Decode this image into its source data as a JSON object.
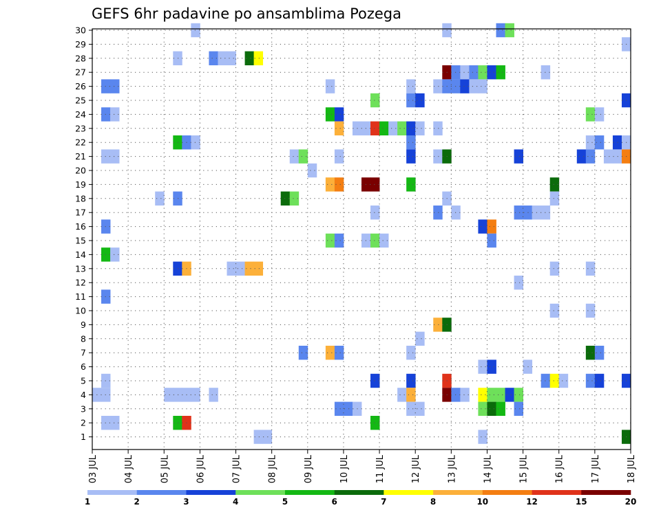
{
  "chart_data": {
    "type": "heatmap",
    "title": "GEFS 6hr padavine po ansamblima Pozega",
    "xlabel": "",
    "ylabel": "",
    "x_range": [
      0,
      15
    ],
    "x_step": 0.25,
    "x_tick_labels": [
      "03 JUL",
      "04 JUL",
      "05 JUL",
      "06 JUL",
      "07 JUL",
      "08 JUL",
      "09 JUL",
      "10 JUL",
      "11 JUL",
      "12 JUL",
      "13 JUL",
      "14 JUL",
      "15 JUL",
      "16 JUL",
      "17 JUL",
      "18 JUL"
    ],
    "y_tick_labels": [
      "1",
      "2",
      "3",
      "4",
      "5",
      "6",
      "7",
      "8",
      "9",
      "10",
      "11",
      "12",
      "13",
      "14",
      "15",
      "16",
      "17",
      "18",
      "19",
      "20",
      "21",
      "22",
      "23",
      "24",
      "25",
      "26",
      "27",
      "28",
      "29",
      "30"
    ],
    "grid": true,
    "legend": {
      "position": "bottom",
      "labels": [
        "1",
        "2",
        "3",
        "4",
        "5",
        "6",
        "7",
        "8",
        "10",
        "12",
        "15",
        "20"
      ],
      "colors": [
        "#a8bdf5",
        "#5a86ee",
        "#1642d8",
        "#6ee05a",
        "#14b814",
        "#0b6b0b",
        "#ffff00",
        "#fcb03a",
        "#f47e12",
        "#e0321a",
        "#7a0000"
      ]
    },
    "cells": [
      [
        30,
        2.75,
        0
      ],
      [
        30,
        9.75,
        0
      ],
      [
        30,
        11.25,
        1
      ],
      [
        30,
        11.5,
        3
      ],
      [
        29,
        14.75,
        0
      ],
      [
        28,
        2.25,
        0
      ],
      [
        28,
        3.25,
        1
      ],
      [
        28,
        3.5,
        0
      ],
      [
        28,
        3.75,
        0
      ],
      [
        28,
        4.25,
        5
      ],
      [
        28,
        4.5,
        6
      ],
      [
        27,
        9.75,
        10
      ],
      [
        27,
        10.0,
        1
      ],
      [
        27,
        10.25,
        0
      ],
      [
        27,
        10.5,
        1
      ],
      [
        27,
        10.75,
        3
      ],
      [
        27,
        11.0,
        2
      ],
      [
        27,
        11.25,
        4
      ],
      [
        27,
        12.5,
        0
      ],
      [
        26,
        0.25,
        1
      ],
      [
        26,
        0.5,
        1
      ],
      [
        26,
        6.5,
        0
      ],
      [
        26,
        8.75,
        0
      ],
      [
        26,
        9.5,
        0
      ],
      [
        26,
        9.75,
        1
      ],
      [
        26,
        10.0,
        1
      ],
      [
        26,
        10.25,
        2
      ],
      [
        26,
        10.5,
        0
      ],
      [
        26,
        10.75,
        0
      ],
      [
        25,
        7.75,
        3
      ],
      [
        25,
        8.75,
        1
      ],
      [
        25,
        9.0,
        2
      ],
      [
        25,
        14.75,
        2
      ],
      [
        24,
        0.25,
        1
      ],
      [
        24,
        0.5,
        0
      ],
      [
        24,
        6.5,
        4
      ],
      [
        24,
        6.75,
        2
      ],
      [
        24,
        13.75,
        3
      ],
      [
        24,
        14.0,
        0
      ],
      [
        23,
        6.75,
        7
      ],
      [
        23,
        7.25,
        0
      ],
      [
        23,
        7.5,
        0
      ],
      [
        23,
        7.75,
        9
      ],
      [
        23,
        8.0,
        4
      ],
      [
        23,
        8.25,
        0
      ],
      [
        23,
        8.5,
        3
      ],
      [
        23,
        8.75,
        2
      ],
      [
        23,
        9.0,
        0
      ],
      [
        23,
        9.5,
        0
      ],
      [
        22,
        2.25,
        4
      ],
      [
        22,
        2.5,
        1
      ],
      [
        22,
        2.75,
        0
      ],
      [
        22,
        8.75,
        1
      ],
      [
        22,
        13.75,
        0
      ],
      [
        22,
        14.0,
        1
      ],
      [
        22,
        14.5,
        2
      ],
      [
        22,
        14.75,
        0
      ],
      [
        21,
        0.25,
        0
      ],
      [
        21,
        0.5,
        0
      ],
      [
        21,
        5.5,
        0
      ],
      [
        21,
        5.75,
        3
      ],
      [
        21,
        6.75,
        0
      ],
      [
        21,
        8.75,
        2
      ],
      [
        21,
        9.5,
        0
      ],
      [
        21,
        9.75,
        5
      ],
      [
        21,
        11.75,
        2
      ],
      [
        21,
        13.5,
        2
      ],
      [
        21,
        13.75,
        1
      ],
      [
        21,
        14.25,
        0
      ],
      [
        21,
        14.5,
        0
      ],
      [
        21,
        14.75,
        8
      ],
      [
        20,
        6.0,
        0
      ],
      [
        19,
        6.5,
        7
      ],
      [
        19,
        6.75,
        8
      ],
      [
        19,
        7.5,
        10
      ],
      [
        19,
        7.75,
        10
      ],
      [
        19,
        8.75,
        4
      ],
      [
        19,
        12.75,
        5
      ],
      [
        18,
        1.75,
        0
      ],
      [
        18,
        2.25,
        1
      ],
      [
        18,
        5.25,
        5
      ],
      [
        18,
        5.5,
        3
      ],
      [
        18,
        9.75,
        0
      ],
      [
        18,
        12.75,
        0
      ],
      [
        17,
        7.75,
        0
      ],
      [
        17,
        9.5,
        1
      ],
      [
        17,
        10.0,
        0
      ],
      [
        17,
        11.75,
        1
      ],
      [
        17,
        12.0,
        1
      ],
      [
        17,
        12.25,
        0
      ],
      [
        17,
        12.5,
        0
      ],
      [
        16,
        0.25,
        1
      ],
      [
        16,
        10.75,
        2
      ],
      [
        16,
        11.0,
        8
      ],
      [
        15,
        6.5,
        3
      ],
      [
        15,
        6.75,
        1
      ],
      [
        15,
        7.5,
        0
      ],
      [
        15,
        7.75,
        3
      ],
      [
        15,
        8.0,
        0
      ],
      [
        15,
        11.0,
        1
      ],
      [
        14,
        0.25,
        4
      ],
      [
        14,
        0.5,
        0
      ],
      [
        13,
        2.25,
        2
      ],
      [
        13,
        2.5,
        7
      ],
      [
        13,
        3.75,
        0
      ],
      [
        13,
        4.0,
        0
      ],
      [
        13,
        4.25,
        7
      ],
      [
        13,
        4.5,
        7
      ],
      [
        13,
        12.75,
        0
      ],
      [
        13,
        13.75,
        0
      ],
      [
        12,
        11.75,
        0
      ],
      [
        11,
        0.25,
        1
      ],
      [
        10,
        12.75,
        0
      ],
      [
        10,
        13.75,
        0
      ],
      [
        9,
        9.5,
        7
      ],
      [
        9,
        9.75,
        5
      ],
      [
        8,
        9.0,
        0
      ],
      [
        7,
        5.75,
        1
      ],
      [
        7,
        6.5,
        7
      ],
      [
        7,
        6.75,
        1
      ],
      [
        7,
        8.75,
        0
      ],
      [
        7,
        13.75,
        5
      ],
      [
        7,
        14.0,
        1
      ],
      [
        6,
        10.75,
        0
      ],
      [
        6,
        11.0,
        2
      ],
      [
        6,
        12.0,
        0
      ],
      [
        5,
        0.25,
        0
      ],
      [
        5,
        7.75,
        2
      ],
      [
        5,
        8.75,
        2
      ],
      [
        5,
        9.75,
        9
      ],
      [
        5,
        12.5,
        1
      ],
      [
        5,
        12.75,
        6
      ],
      [
        5,
        13.0,
        0
      ],
      [
        5,
        13.75,
        1
      ],
      [
        5,
        14.0,
        2
      ],
      [
        5,
        14.75,
        2
      ],
      [
        4,
        0.0,
        0
      ],
      [
        4,
        0.25,
        0
      ],
      [
        4,
        2.0,
        0
      ],
      [
        4,
        2.25,
        0
      ],
      [
        4,
        2.5,
        0
      ],
      [
        4,
        2.75,
        0
      ],
      [
        4,
        3.25,
        0
      ],
      [
        4,
        8.5,
        0
      ],
      [
        4,
        8.75,
        7
      ],
      [
        4,
        9.75,
        10
      ],
      [
        4,
        10.0,
        1
      ],
      [
        4,
        10.25,
        0
      ],
      [
        4,
        10.75,
        6
      ],
      [
        4,
        11.0,
        3
      ],
      [
        4,
        11.25,
        3
      ],
      [
        4,
        11.5,
        2
      ],
      [
        4,
        11.75,
        3
      ],
      [
        3,
        6.75,
        1
      ],
      [
        3,
        7.0,
        1
      ],
      [
        3,
        7.25,
        0
      ],
      [
        3,
        8.75,
        0
      ],
      [
        3,
        9.0,
        0
      ],
      [
        3,
        10.75,
        3
      ],
      [
        3,
        11.0,
        5
      ],
      [
        3,
        11.25,
        4
      ],
      [
        3,
        11.75,
        1
      ],
      [
        2,
        0.25,
        0
      ],
      [
        2,
        0.5,
        0
      ],
      [
        2,
        2.25,
        4
      ],
      [
        2,
        2.5,
        9
      ],
      [
        2,
        7.75,
        4
      ],
      [
        1,
        4.5,
        0
      ],
      [
        1,
        4.75,
        0
      ],
      [
        1,
        10.75,
        0
      ],
      [
        1,
        14.75,
        5
      ]
    ]
  }
}
